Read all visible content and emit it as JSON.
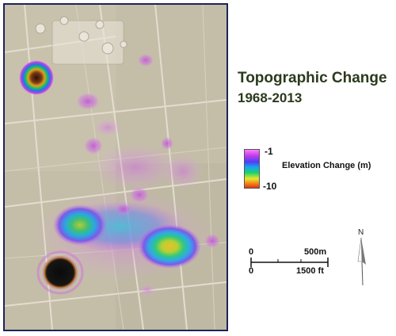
{
  "title": "Topographic Change",
  "subtitle": "1968-2013",
  "legend": {
    "label": "Elevation Change (m)",
    "max_label": "-1",
    "min_label": "-10",
    "colors": [
      "#ff7bff",
      "#c03ce8",
      "#4d3ff4",
      "#1aa6f0",
      "#16d26d",
      "#e8e82a",
      "#f28a1a",
      "#e03410"
    ]
  },
  "scale_bar": {
    "zero_top": "0",
    "zero_bottom": "0",
    "meters_label": "500m",
    "feet_label": "1500 ft"
  },
  "north_arrow": {
    "label": "N"
  },
  "map": {
    "basemap": "aerial imagery",
    "border_color": "#1c2557",
    "sinkholes": 2
  }
}
